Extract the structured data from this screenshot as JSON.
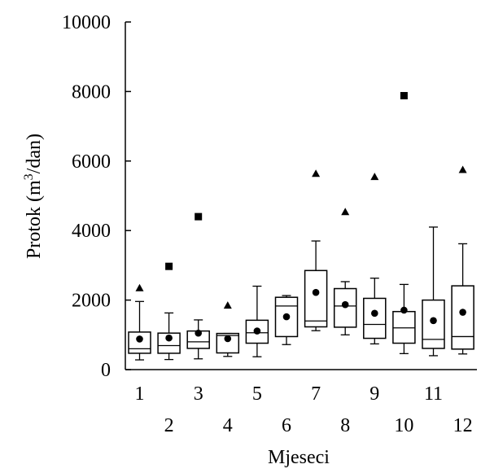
{
  "chart_data": {
    "type": "box",
    "xlabel": "Mjeseci",
    "ylabel": "Protok (m³/dan)",
    "ylabel_parts": {
      "pre": "Protok (m",
      "sup": "3",
      "post": "/dan)"
    },
    "ylim": [
      0,
      10000
    ],
    "y_ticks": [
      0,
      2000,
      4000,
      6000,
      8000,
      10000
    ],
    "y_tick_labels": [
      "0",
      "2000",
      "4000",
      "6000",
      "8000",
      "10000"
    ],
    "categories": [
      "1",
      "2",
      "3",
      "4",
      "5",
      "6",
      "7",
      "8",
      "9",
      "10",
      "11",
      "12"
    ],
    "boxes": [
      {
        "month": "1",
        "whisker_low": 280,
        "q1": 470,
        "median": 600,
        "q3": 1080,
        "whisker_high": 1960,
        "mean": 880
      },
      {
        "month": "2",
        "whisker_low": 290,
        "q1": 470,
        "median": 690,
        "q3": 1050,
        "whisker_high": 1630,
        "mean": 910
      },
      {
        "month": "3",
        "whisker_low": 310,
        "q1": 610,
        "median": 800,
        "q3": 1110,
        "whisker_high": 1430,
        "mean": 1050
      },
      {
        "month": "4",
        "whisker_low": 380,
        "q1": 480,
        "median": 980,
        "q3": 1040,
        "whisker_high": 1040,
        "mean": 890
      },
      {
        "month": "5",
        "whisker_low": 370,
        "q1": 760,
        "median": 1060,
        "q3": 1420,
        "whisker_high": 2400,
        "mean": 1110
      },
      {
        "month": "6",
        "whisker_low": 720,
        "q1": 950,
        "median": 1830,
        "q3": 2080,
        "whisker_high": 2130,
        "mean": 1520
      },
      {
        "month": "7",
        "whisker_low": 1120,
        "q1": 1230,
        "median": 1400,
        "q3": 2850,
        "whisker_high": 3700,
        "mean": 2220
      },
      {
        "month": "8",
        "whisker_low": 1000,
        "q1": 1220,
        "median": 1830,
        "q3": 2330,
        "whisker_high": 2530,
        "mean": 1870
      },
      {
        "month": "9",
        "whisker_low": 740,
        "q1": 900,
        "median": 1300,
        "q3": 2050,
        "whisker_high": 2630,
        "mean": 1620
      },
      {
        "month": "10",
        "whisker_low": 460,
        "q1": 760,
        "median": 1200,
        "q3": 1670,
        "whisker_high": 2450,
        "mean": 1710
      },
      {
        "month": "11",
        "whisker_low": 400,
        "q1": 610,
        "median": 870,
        "q3": 2000,
        "whisker_high": 4100,
        "mean": 1410
      },
      {
        "month": "12",
        "whisker_low": 450,
        "q1": 590,
        "median": 950,
        "q3": 2410,
        "whisker_high": 3620,
        "mean": 1650
      }
    ],
    "max_markers": [
      {
        "month": "1",
        "value": 2360,
        "marker": "triangle"
      },
      {
        "month": "2",
        "value": 2970,
        "marker": "square"
      },
      {
        "month": "3",
        "value": 4400,
        "marker": "square"
      },
      {
        "month": "4",
        "value": 1860,
        "marker": "triangle"
      },
      {
        "month": "7",
        "value": 5650,
        "marker": "triangle"
      },
      {
        "month": "8",
        "value": 4550,
        "marker": "triangle"
      },
      {
        "month": "9",
        "value": 5560,
        "marker": "triangle"
      },
      {
        "month": "10",
        "value": 7880,
        "marker": "square"
      },
      {
        "month": "12",
        "value": 5760,
        "marker": "triangle"
      }
    ]
  }
}
